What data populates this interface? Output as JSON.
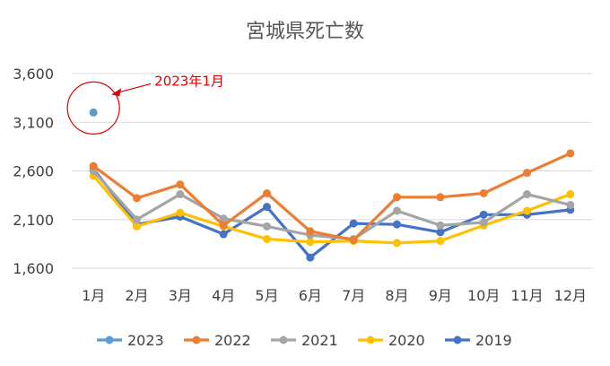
{
  "chart_data": {
    "type": "line",
    "title": "宮城県死亡数",
    "categories": [
      "1月",
      "2月",
      "3月",
      "4月",
      "5月",
      "6月",
      "7月",
      "8月",
      "9月",
      "10月",
      "11月",
      "12月"
    ],
    "ylim": [
      1600,
      3600
    ],
    "yticks": [
      1600,
      2100,
      2600,
      3100,
      3600
    ],
    "ytick_labels": [
      "1,600",
      "2,100",
      "2,600",
      "3,100",
      "3,600"
    ],
    "grid": true,
    "legend_position": "bottom",
    "series": [
      {
        "name": "2023",
        "color": "#5b9bd5",
        "values": [
          3200,
          null,
          null,
          null,
          null,
          null,
          null,
          null,
          null,
          null,
          null,
          null
        ]
      },
      {
        "name": "2022",
        "color": "#ed7d31",
        "values": [
          2650,
          2320,
          2460,
          2040,
          2370,
          1980,
          1890,
          2330,
          2330,
          2370,
          2580,
          2780
        ]
      },
      {
        "name": "2021",
        "color": "#a5a5a5",
        "values": [
          2600,
          2100,
          2360,
          2110,
          2030,
          1940,
          1900,
          2190,
          2040,
          2070,
          2360,
          2250
        ]
      },
      {
        "name": "2020",
        "color": "#ffc000",
        "values": [
          2550,
          2030,
          2170,
          2030,
          1900,
          1870,
          1880,
          1860,
          1880,
          2040,
          2190,
          2360
        ]
      },
      {
        "name": "2019",
        "color": "#4472c4",
        "values": [
          2620,
          2050,
          2130,
          1950,
          2230,
          1710,
          2060,
          2050,
          1970,
          2150,
          2150,
          2200
        ]
      }
    ],
    "annotation": {
      "text": "2023年1月",
      "color": "#e00000"
    }
  }
}
